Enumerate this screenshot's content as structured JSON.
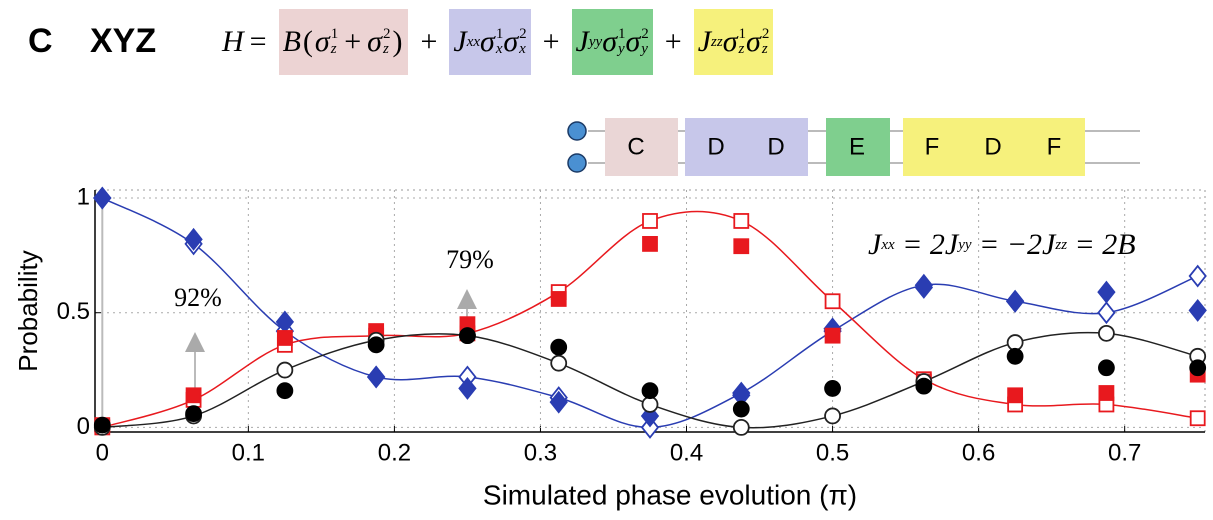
{
  "header": {
    "label": "C",
    "model": "XYZ"
  },
  "equation": {
    "lhs": "H",
    "operators": [
      "=",
      "+",
      "+",
      "+"
    ],
    "terms": [
      {
        "color": "#ecd3d3",
        "coef": "B",
        "paren": [
          "(",
          ")"
        ],
        "join": "+",
        "ops": [
          {
            "sym": "σ",
            "sup": "1",
            "sub": "z"
          },
          {
            "sym": "σ",
            "sup": "2",
            "sub": "z"
          }
        ]
      },
      {
        "color": "#c7c7ea",
        "coef": "J",
        "coef_sub": "xx",
        "ops": [
          {
            "sym": "σ",
            "sup": "1",
            "sub": "x"
          },
          {
            "sym": "σ",
            "sup": "2",
            "sub": "x"
          }
        ]
      },
      {
        "color": "#7fcf8e",
        "coef": "J",
        "coef_sub": "yy",
        "ops": [
          {
            "sym": "σ",
            "sup": "1",
            "sub": "y"
          },
          {
            "sym": "σ",
            "sup": "2",
            "sub": "y"
          }
        ]
      },
      {
        "color": "#f6f17c",
        "coef": "J",
        "coef_sub": "zz",
        "ops": [
          {
            "sym": "σ",
            "sup": "1",
            "sub": "z"
          },
          {
            "sym": "σ",
            "sup": "2",
            "sub": "z"
          }
        ]
      }
    ]
  },
  "sequence": [
    {
      "color": "#ead6d6",
      "labels": [
        "C"
      ]
    },
    {
      "color": "#c7c7ea",
      "labels": [
        "D",
        "D"
      ]
    },
    {
      "color": "#7fcf8e",
      "labels": [
        "E"
      ]
    },
    {
      "color": "#f6f17c",
      "labels": [
        "F",
        "D",
        "F"
      ]
    }
  ],
  "relation": [
    {
      "t": "J",
      "sub": "xx"
    },
    {
      "t": " = 2J",
      "sub": "yy"
    },
    {
      "t": " = −2J",
      "sub": "zz"
    },
    {
      "t": " = 2B"
    }
  ],
  "chart_data": {
    "type": "scatter",
    "xlabel": "Simulated phase evolution (π)",
    "ylabel": "Probability",
    "x": [
      0,
      0.0625,
      0.125,
      0.1875,
      0.25,
      0.3125,
      0.375,
      0.4375,
      0.5,
      0.5625,
      0.625,
      0.6875,
      0.75
    ],
    "xlim": [
      -0.005,
      0.755
    ],
    "xticks": [
      0,
      0.1,
      0.2,
      0.3,
      0.4,
      0.5,
      0.6,
      0.7
    ],
    "ylim": [
      -0.02,
      1.035
    ],
    "yticks": [
      0,
      0.5,
      1
    ],
    "grid": true,
    "annotations": [
      "92%",
      "79%"
    ],
    "series": [
      {
        "color": "#2a3db2",
        "marker": "diamond",
        "filled": false,
        "curve": true,
        "values": [
          1.0,
          0.8,
          0.42,
          0.22,
          0.22,
          0.13,
          0.0,
          0.15,
          0.42,
          0.62,
          0.55,
          0.5,
          0.66
        ]
      },
      {
        "color": "#2a3db2",
        "marker": "diamond",
        "filled": true,
        "values": [
          1.0,
          0.82,
          0.46,
          0.22,
          0.17,
          0.11,
          0.05,
          0.14,
          0.43,
          0.61,
          0.55,
          0.59,
          0.51
        ]
      },
      {
        "color": "#e8191e",
        "marker": "square",
        "filled": false,
        "curve": true,
        "values": [
          0.0,
          0.12,
          0.36,
          0.4,
          0.41,
          0.59,
          0.9,
          0.9,
          0.55,
          0.21,
          0.1,
          0.1,
          0.04
        ]
      },
      {
        "color": "#e8191e",
        "marker": "square",
        "filled": true,
        "values": [
          0.01,
          0.14,
          0.39,
          0.42,
          0.45,
          0.56,
          0.8,
          0.79,
          0.4,
          0.2,
          0.14,
          0.15,
          0.23
        ]
      },
      {
        "color": "#222222",
        "marker": "circle",
        "filled": false,
        "curve": true,
        "values": [
          0.0,
          0.05,
          0.25,
          0.38,
          0.4,
          0.28,
          0.1,
          0.0,
          0.05,
          0.2,
          0.37,
          0.41,
          0.31
        ]
      },
      {
        "color": "#000000",
        "marker": "circle",
        "filled": true,
        "values": [
          0.01,
          0.06,
          0.16,
          0.36,
          0.4,
          0.35,
          0.16,
          0.08,
          0.17,
          0.18,
          0.31,
          0.26,
          0.26
        ]
      }
    ]
  }
}
